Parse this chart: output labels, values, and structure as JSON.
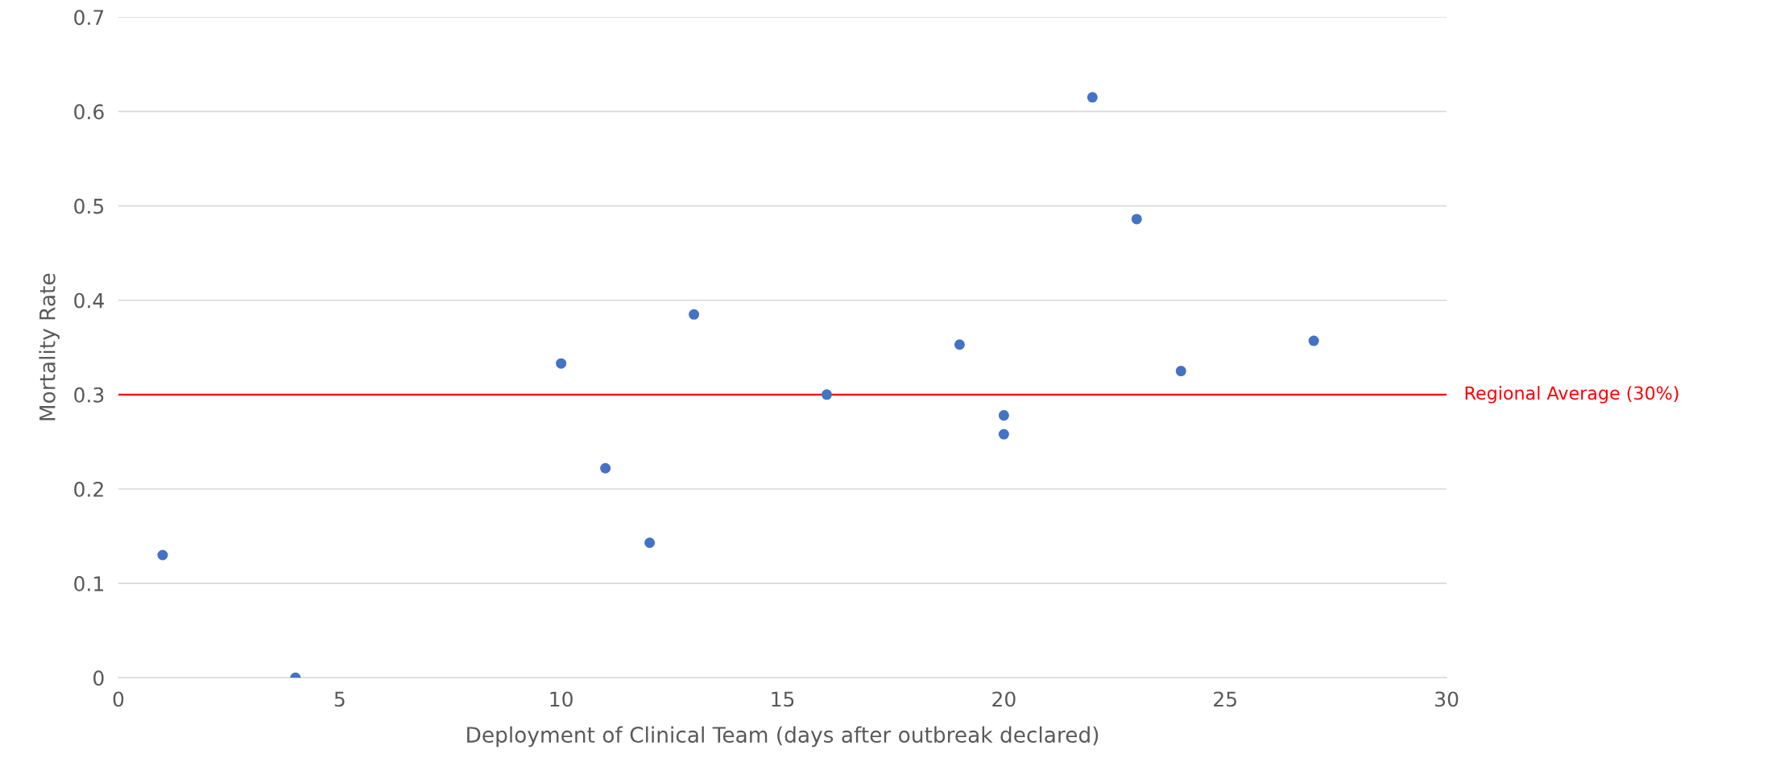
{
  "chart_data": {
    "type": "scatter",
    "xlabel": "Deployment of Clinical Team (days after outbreak declared)",
    "ylabel": "Mortality Rate",
    "x": [
      1,
      4,
      10,
      11,
      12,
      13,
      16,
      19,
      20,
      20,
      22,
      23,
      24,
      27
    ],
    "series": [
      {
        "color": "#4472c4",
        "values": [
          0.13,
          0,
          0.333,
          0.222,
          0.143,
          0.385,
          0.3,
          0.353,
          0.278,
          0.258,
          0.615,
          0.486,
          0.325,
          0.357
        ]
      }
    ],
    "xlim": [
      0,
      30
    ],
    "xticks": [
      0,
      5,
      10,
      15,
      20,
      25,
      30
    ],
    "ylim": [
      0,
      0.7
    ],
    "yticks": [
      0,
      0.1,
      0.2,
      0.3,
      0.4,
      0.5,
      0.6,
      0.7
    ],
    "grid": "y",
    "marker": "circle",
    "ref_lines": [
      {
        "axis": "y",
        "value": 0.3,
        "label": "Regional Average (30%)",
        "color": "#ff0000"
      }
    ]
  }
}
